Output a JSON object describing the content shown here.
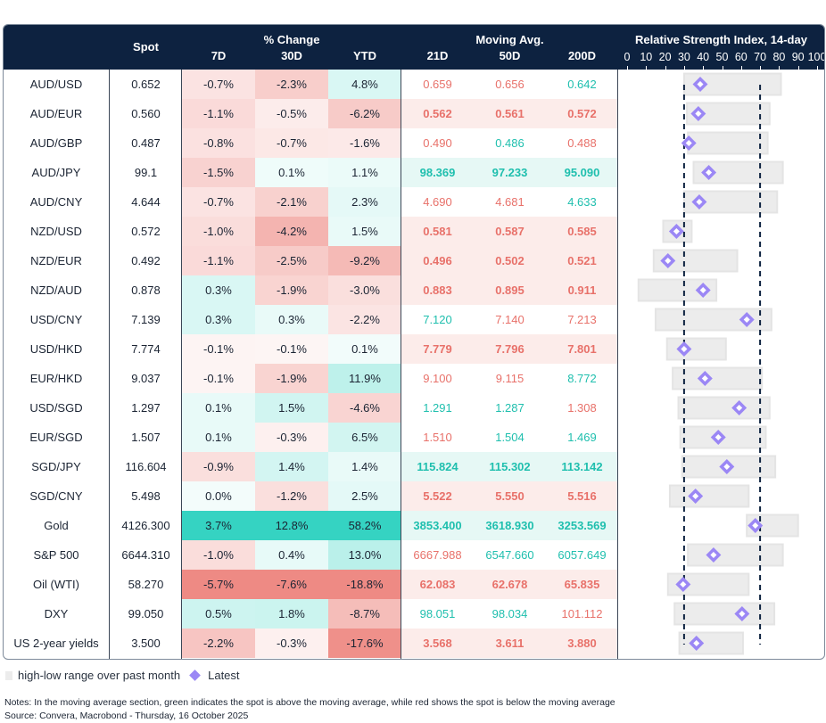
{
  "header": {
    "spot": "Spot",
    "pct_change": "% Change",
    "d7": "7D",
    "d30": "30D",
    "ytd": "YTD",
    "moving_avg": "Moving Avg.",
    "ma21": "21D",
    "ma50": "50D",
    "ma200": "200D",
    "rsi_title": "Relative Strength Index, 14-day",
    "rsi_ticks": [
      "0",
      "10",
      "20",
      "30",
      "40",
      "50",
      "60",
      "70",
      "80",
      "90",
      "100"
    ]
  },
  "colors": {
    "header_bg": "#0d2240",
    "green": "#1fbfae",
    "red": "#e8716a",
    "up_full": "#35d3c2",
    "down_full": "#ee8a84",
    "range": "#ececec",
    "latest": "#9b87f5"
  },
  "rows": [
    {
      "name": "AUD/USD",
      "spot": "0.652",
      "d7": "-0.7%",
      "d30": "-2.3%",
      "ytd": "4.8%",
      "ma21": "0.659",
      "ma50": "0.656",
      "ma200": "0.642",
      "rsi": {
        "low": 30,
        "high": 81,
        "latest": 38.5
      }
    },
    {
      "name": "AUD/EUR",
      "spot": "0.560",
      "d7": "-1.1%",
      "d30": "-0.5%",
      "ytd": "-6.2%",
      "ma21": "0.562",
      "ma50": "0.561",
      "ma200": "0.572",
      "rsi": {
        "low": 31.5,
        "high": 75,
        "latest": 37.5
      }
    },
    {
      "name": "AUD/GBP",
      "spot": "0.487",
      "d7": "-0.8%",
      "d30": "-0.7%",
      "ytd": "-1.6%",
      "ma21": "0.490",
      "ma50": "0.486",
      "ma200": "0.488",
      "rsi": {
        "low": 32,
        "high": 74,
        "latest": 32.5
      }
    },
    {
      "name": "AUD/JPY",
      "spot": "99.1",
      "d7": "-1.5%",
      "d30": "0.1%",
      "ytd": "1.1%",
      "ma21": "98.369",
      "ma50": "97.233",
      "ma200": "95.090",
      "rsi": {
        "low": 35,
        "high": 82,
        "latest": 43
      }
    },
    {
      "name": "AUD/CNY",
      "spot": "4.644",
      "d7": "-0.7%",
      "d30": "-2.1%",
      "ytd": "2.3%",
      "ma21": "4.690",
      "ma50": "4.681",
      "ma200": "4.633",
      "rsi": {
        "low": 30,
        "high": 79,
        "latest": 38
      }
    },
    {
      "name": "NZD/USD",
      "spot": "0.572",
      "d7": "-1.0%",
      "d30": "-4.2%",
      "ytd": "1.5%",
      "ma21": "0.581",
      "ma50": "0.587",
      "ma200": "0.585",
      "rsi": {
        "low": 19,
        "high": 34,
        "latest": 26
      }
    },
    {
      "name": "NZD/EUR",
      "spot": "0.492",
      "d7": "-1.1%",
      "d30": "-2.5%",
      "ytd": "-9.2%",
      "ma21": "0.496",
      "ma50": "0.502",
      "ma200": "0.521",
      "rsi": {
        "low": 14,
        "high": 58,
        "latest": 21.5
      }
    },
    {
      "name": "NZD/AUD",
      "spot": "0.878",
      "d7": "0.3%",
      "d30": "-1.9%",
      "ytd": "-3.0%",
      "ma21": "0.883",
      "ma50": "0.895",
      "ma200": "0.911",
      "rsi": {
        "low": 6,
        "high": 47,
        "latest": 40
      }
    },
    {
      "name": "USD/CNY",
      "spot": "7.139",
      "d7": "0.3%",
      "d30": "0.3%",
      "ytd": "-2.2%",
      "ma21": "7.120",
      "ma50": "7.140",
      "ma200": "7.213",
      "rsi": {
        "low": 15,
        "high": 76,
        "latest": 63
      }
    },
    {
      "name": "USD/HKD",
      "spot": "7.774",
      "d7": "-0.1%",
      "d30": "-0.1%",
      "ytd": "0.1%",
      "ma21": "7.779",
      "ma50": "7.796",
      "ma200": "7.801",
      "rsi": {
        "low": 21,
        "high": 52,
        "latest": 30
      }
    },
    {
      "name": "EUR/HKD",
      "spot": "9.037",
      "d7": "-0.1%",
      "d30": "-1.9%",
      "ytd": "11.9%",
      "ma21": "9.100",
      "ma50": "9.115",
      "ma200": "8.772",
      "rsi": {
        "low": 24,
        "high": 71,
        "latest": 41
      }
    },
    {
      "name": "USD/SGD",
      "spot": "1.297",
      "d7": "0.1%",
      "d30": "1.5%",
      "ytd": "-4.6%",
      "ma21": "1.291",
      "ma50": "1.287",
      "ma200": "1.308",
      "rsi": {
        "low": 27,
        "high": 75,
        "latest": 59
      }
    },
    {
      "name": "EUR/SGD",
      "spot": "1.507",
      "d7": "0.1%",
      "d30": "-0.3%",
      "ytd": "6.5%",
      "ma21": "1.510",
      "ma50": "1.504",
      "ma200": "1.469",
      "rsi": {
        "low": 28,
        "high": 73,
        "latest": 48
      }
    },
    {
      "name": "SGD/JPY",
      "spot": "116.604",
      "d7": "-0.9%",
      "d30": "1.4%",
      "ytd": "1.4%",
      "ma21": "115.824",
      "ma50": "115.302",
      "ma200": "113.142",
      "rsi": {
        "low": 29,
        "high": 78,
        "latest": 52.5
      }
    },
    {
      "name": "SGD/CNY",
      "spot": "5.498",
      "d7": "0.0%",
      "d30": "-1.2%",
      "ytd": "2.5%",
      "ma21": "5.522",
      "ma50": "5.550",
      "ma200": "5.516",
      "rsi": {
        "low": 22.5,
        "high": 64,
        "latest": 36
      }
    },
    {
      "name": "Gold",
      "spot": "4126.300",
      "d7": "3.7%",
      "d30": "12.8%",
      "ytd": "58.2%",
      "ma21": "3853.400",
      "ma50": "3618.930",
      "ma200": "3253.569",
      "rsi": {
        "low": 63,
        "high": 90,
        "latest": 67.5
      }
    },
    {
      "name": "S&P 500",
      "spot": "6644.310",
      "d7": "-1.0%",
      "d30": "0.4%",
      "ytd": "13.0%",
      "ma21": "6667.988",
      "ma50": "6547.660",
      "ma200": "6057.649",
      "rsi": {
        "low": 32,
        "high": 82,
        "latest": 45.5
      }
    },
    {
      "name": "Oil (WTI)",
      "spot": "58.270",
      "d7": "-5.7%",
      "d30": "-7.6%",
      "ytd": "-18.8%",
      "ma21": "62.083",
      "ma50": "62.678",
      "ma200": "65.835",
      "rsi": {
        "low": 21.5,
        "high": 64,
        "latest": 29.5
      }
    },
    {
      "name": "DXY",
      "spot": "99.050",
      "d7": "0.5%",
      "d30": "1.8%",
      "ytd": "-8.7%",
      "ma21": "98.051",
      "ma50": "98.034",
      "ma200": "101.112",
      "rsi": {
        "low": 25,
        "high": 77.5,
        "latest": 60.5
      }
    },
    {
      "name": "US 2-year yields",
      "spot": "3.500",
      "d7": "-2.2%",
      "d30": "-0.3%",
      "ytd": "-17.6%",
      "ma21": "3.568",
      "ma50": "3.611",
      "ma200": "3.880",
      "rsi": {
        "low": 27.5,
        "high": 61,
        "latest": 36.5
      }
    }
  ],
  "rsi_reference_lines": [
    30,
    70
  ],
  "legend": {
    "range": "high-low range over past month",
    "latest": "Latest"
  },
  "notes": "Notes: In the moving average section, green indicates the spot is above the moving average, while red shows the spot is below the moving average",
  "source": "Source: Convera, Macrobond - Thursday, 16 October 2025"
}
